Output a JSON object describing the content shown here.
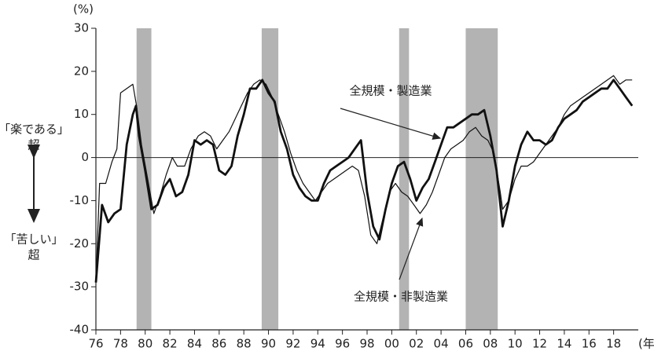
{
  "chart_data": {
    "type": "line",
    "y_unit_label": "(%)",
    "x_unit_label": "(年)",
    "xlim": [
      1976,
      2020
    ],
    "ylim": [
      -40,
      30
    ],
    "yticks": [
      30,
      20,
      10,
      0,
      -10,
      -20,
      -30,
      -40
    ],
    "xticks": [
      {
        "value": 1976,
        "label": "76"
      },
      {
        "value": 1978,
        "label": "78"
      },
      {
        "value": 1980,
        "label": "80"
      },
      {
        "value": 1982,
        "label": "82"
      },
      {
        "value": 1984,
        "label": "84"
      },
      {
        "value": 1986,
        "label": "86"
      },
      {
        "value": 1988,
        "label": "88"
      },
      {
        "value": 1990,
        "label": "90"
      },
      {
        "value": 1992,
        "label": "92"
      },
      {
        "value": 1994,
        "label": "94"
      },
      {
        "value": 1996,
        "label": "96"
      },
      {
        "value": 1998,
        "label": "98"
      },
      {
        "value": 2000,
        "label": "00"
      },
      {
        "value": 2002,
        "label": "02"
      },
      {
        "value": 2004,
        "label": "04"
      },
      {
        "value": 2006,
        "label": "06"
      },
      {
        "value": 2008,
        "label": "08"
      },
      {
        "value": 2010,
        "label": "10"
      },
      {
        "value": 2012,
        "label": "12"
      },
      {
        "value": 2014,
        "label": "14"
      },
      {
        "value": 2016,
        "label": "16"
      },
      {
        "value": 2018,
        "label": "18"
      }
    ],
    "shaded_periods": [
      [
        1979.3,
        1980.5
      ],
      [
        1989.45,
        1990.8
      ],
      [
        2000.6,
        2001.4
      ],
      [
        2006.0,
        2008.6
      ]
    ],
    "shade_color": "#b3b3b3",
    "zero_line": true,
    "series": [
      {
        "name": "全規模・製造業",
        "color": "#111111",
        "width": 2.8,
        "x": [
          1976.0,
          1976.5,
          1977.0,
          1977.5,
          1978.0,
          1978.5,
          1979.0,
          1979.25,
          1979.5,
          1980.0,
          1980.5,
          1981.0,
          1981.5,
          1982.0,
          1982.5,
          1983.0,
          1983.5,
          1984.0,
          1984.5,
          1985.0,
          1985.5,
          1986.0,
          1986.5,
          1987.0,
          1987.5,
          1988.0,
          1988.5,
          1989.0,
          1989.5,
          1990.0,
          1990.5,
          1991.0,
          1991.5,
          1992.0,
          1992.5,
          1993.0,
          1993.5,
          1994.0,
          1994.5,
          1995.0,
          1995.5,
          1996.0,
          1996.5,
          1997.0,
          1997.5,
          1998.0,
          1998.5,
          1999.0,
          1999.5,
          2000.0,
          2000.5,
          2001.0,
          2001.5,
          2002.0,
          2002.5,
          2003.0,
          2003.5,
          2004.0,
          2004.5,
          2005.0,
          2005.5,
          2006.0,
          2006.5,
          2007.0,
          2007.5,
          2008.0,
          2008.5,
          2009.0,
          2009.5,
          2010.0,
          2010.5,
          2011.0,
          2011.5,
          2012.0,
          2012.5,
          2013.0,
          2013.5,
          2014.0,
          2014.5,
          2015.0,
          2015.5,
          2016.0,
          2016.5,
          2017.0,
          2017.5,
          2018.0,
          2018.5,
          2019.0,
          2019.5
        ],
        "values": [
          -29,
          -11,
          -15,
          -13,
          -12,
          3,
          10,
          12,
          5,
          -3,
          -12,
          -11,
          -7,
          -5,
          -9,
          -8,
          -4,
          4,
          3,
          4,
          3,
          -3,
          -4,
          -2,
          5,
          10,
          16,
          16,
          18,
          15,
          13,
          6,
          2,
          -4,
          -7,
          -9,
          -10,
          -10,
          -6,
          -3,
          -2,
          -1,
          0,
          2,
          4,
          -8,
          -16,
          -19,
          -12,
          -6,
          -2,
          -1,
          -5,
          -10,
          -7,
          -5,
          -1,
          3,
          7,
          7,
          8,
          9,
          10,
          10,
          11,
          5,
          -3,
          -16,
          -10,
          -2,
          3,
          6,
          4,
          4,
          3,
          4,
          7,
          9,
          10,
          11,
          13,
          14,
          15,
          16,
          16,
          18,
          16,
          14,
          12
        ]
      },
      {
        "name": "全規模・非製造業",
        "color": "#111111",
        "width": 1.2,
        "x": [
          1976.0,
          1976.3,
          1976.8,
          1977.3,
          1977.7,
          1978.0,
          1978.5,
          1979.0,
          1979.3,
          1979.7,
          1980.2,
          1980.7,
          1981.2,
          1981.7,
          1982.2,
          1982.6,
          1983.2,
          1983.7,
          1984.3,
          1984.8,
          1985.3,
          1985.8,
          1986.3,
          1986.8,
          1987.3,
          1987.8,
          1988.3,
          1988.8,
          1989.3,
          1989.8,
          1990.3,
          1990.8,
          1991.3,
          1991.8,
          1992.3,
          1992.8,
          1993.3,
          1993.8,
          1994.3,
          1994.8,
          1995.3,
          1995.8,
          1996.3,
          1996.8,
          1997.3,
          1997.8,
          1998.3,
          1998.8,
          1999.3,
          1999.8,
          2000.3,
          2000.8,
          2001.3,
          2001.8,
          2002.3,
          2002.8,
          2003.3,
          2003.8,
          2004.3,
          2004.8,
          2005.3,
          2005.8,
          2006.3,
          2006.8,
          2007.3,
          2007.8,
          2008.3,
          2008.8,
          2009.0,
          2009.5,
          2010.0,
          2010.5,
          2011.0,
          2011.5,
          2012.0,
          2012.5,
          2013.0,
          2013.5,
          2014.0,
          2014.5,
          2015.0,
          2015.5,
          2016.0,
          2016.5,
          2017.0,
          2017.5,
          2018.0,
          2018.5,
          2019.0,
          2019.5
        ],
        "values": [
          -29,
          -6,
          -6,
          -1,
          2,
          15,
          16,
          17,
          12,
          3,
          -5,
          -13,
          -9,
          -4,
          0,
          -2,
          -2,
          2,
          5,
          6,
          5,
          2,
          4,
          6,
          9,
          12,
          15,
          17,
          18,
          17,
          14,
          10,
          6,
          1,
          -3,
          -6,
          -8,
          -10,
          -8,
          -6,
          -5,
          -4,
          -3,
          -2,
          -3,
          -9,
          -18,
          -20,
          -14,
          -8,
          -6,
          -8,
          -9,
          -11,
          -13,
          -11,
          -8,
          -4,
          0,
          2,
          3,
          4,
          6,
          7,
          5,
          4,
          1,
          -8,
          -12,
          -10,
          -5,
          -2,
          -2,
          -1,
          1,
          3,
          5,
          7,
          10,
          12,
          13,
          14,
          15,
          16,
          17,
          18,
          19,
          17,
          18,
          18
        ]
      }
    ],
    "side_labels": [
      "「楽である」",
      "超",
      "「苦しい」",
      "超"
    ]
  }
}
